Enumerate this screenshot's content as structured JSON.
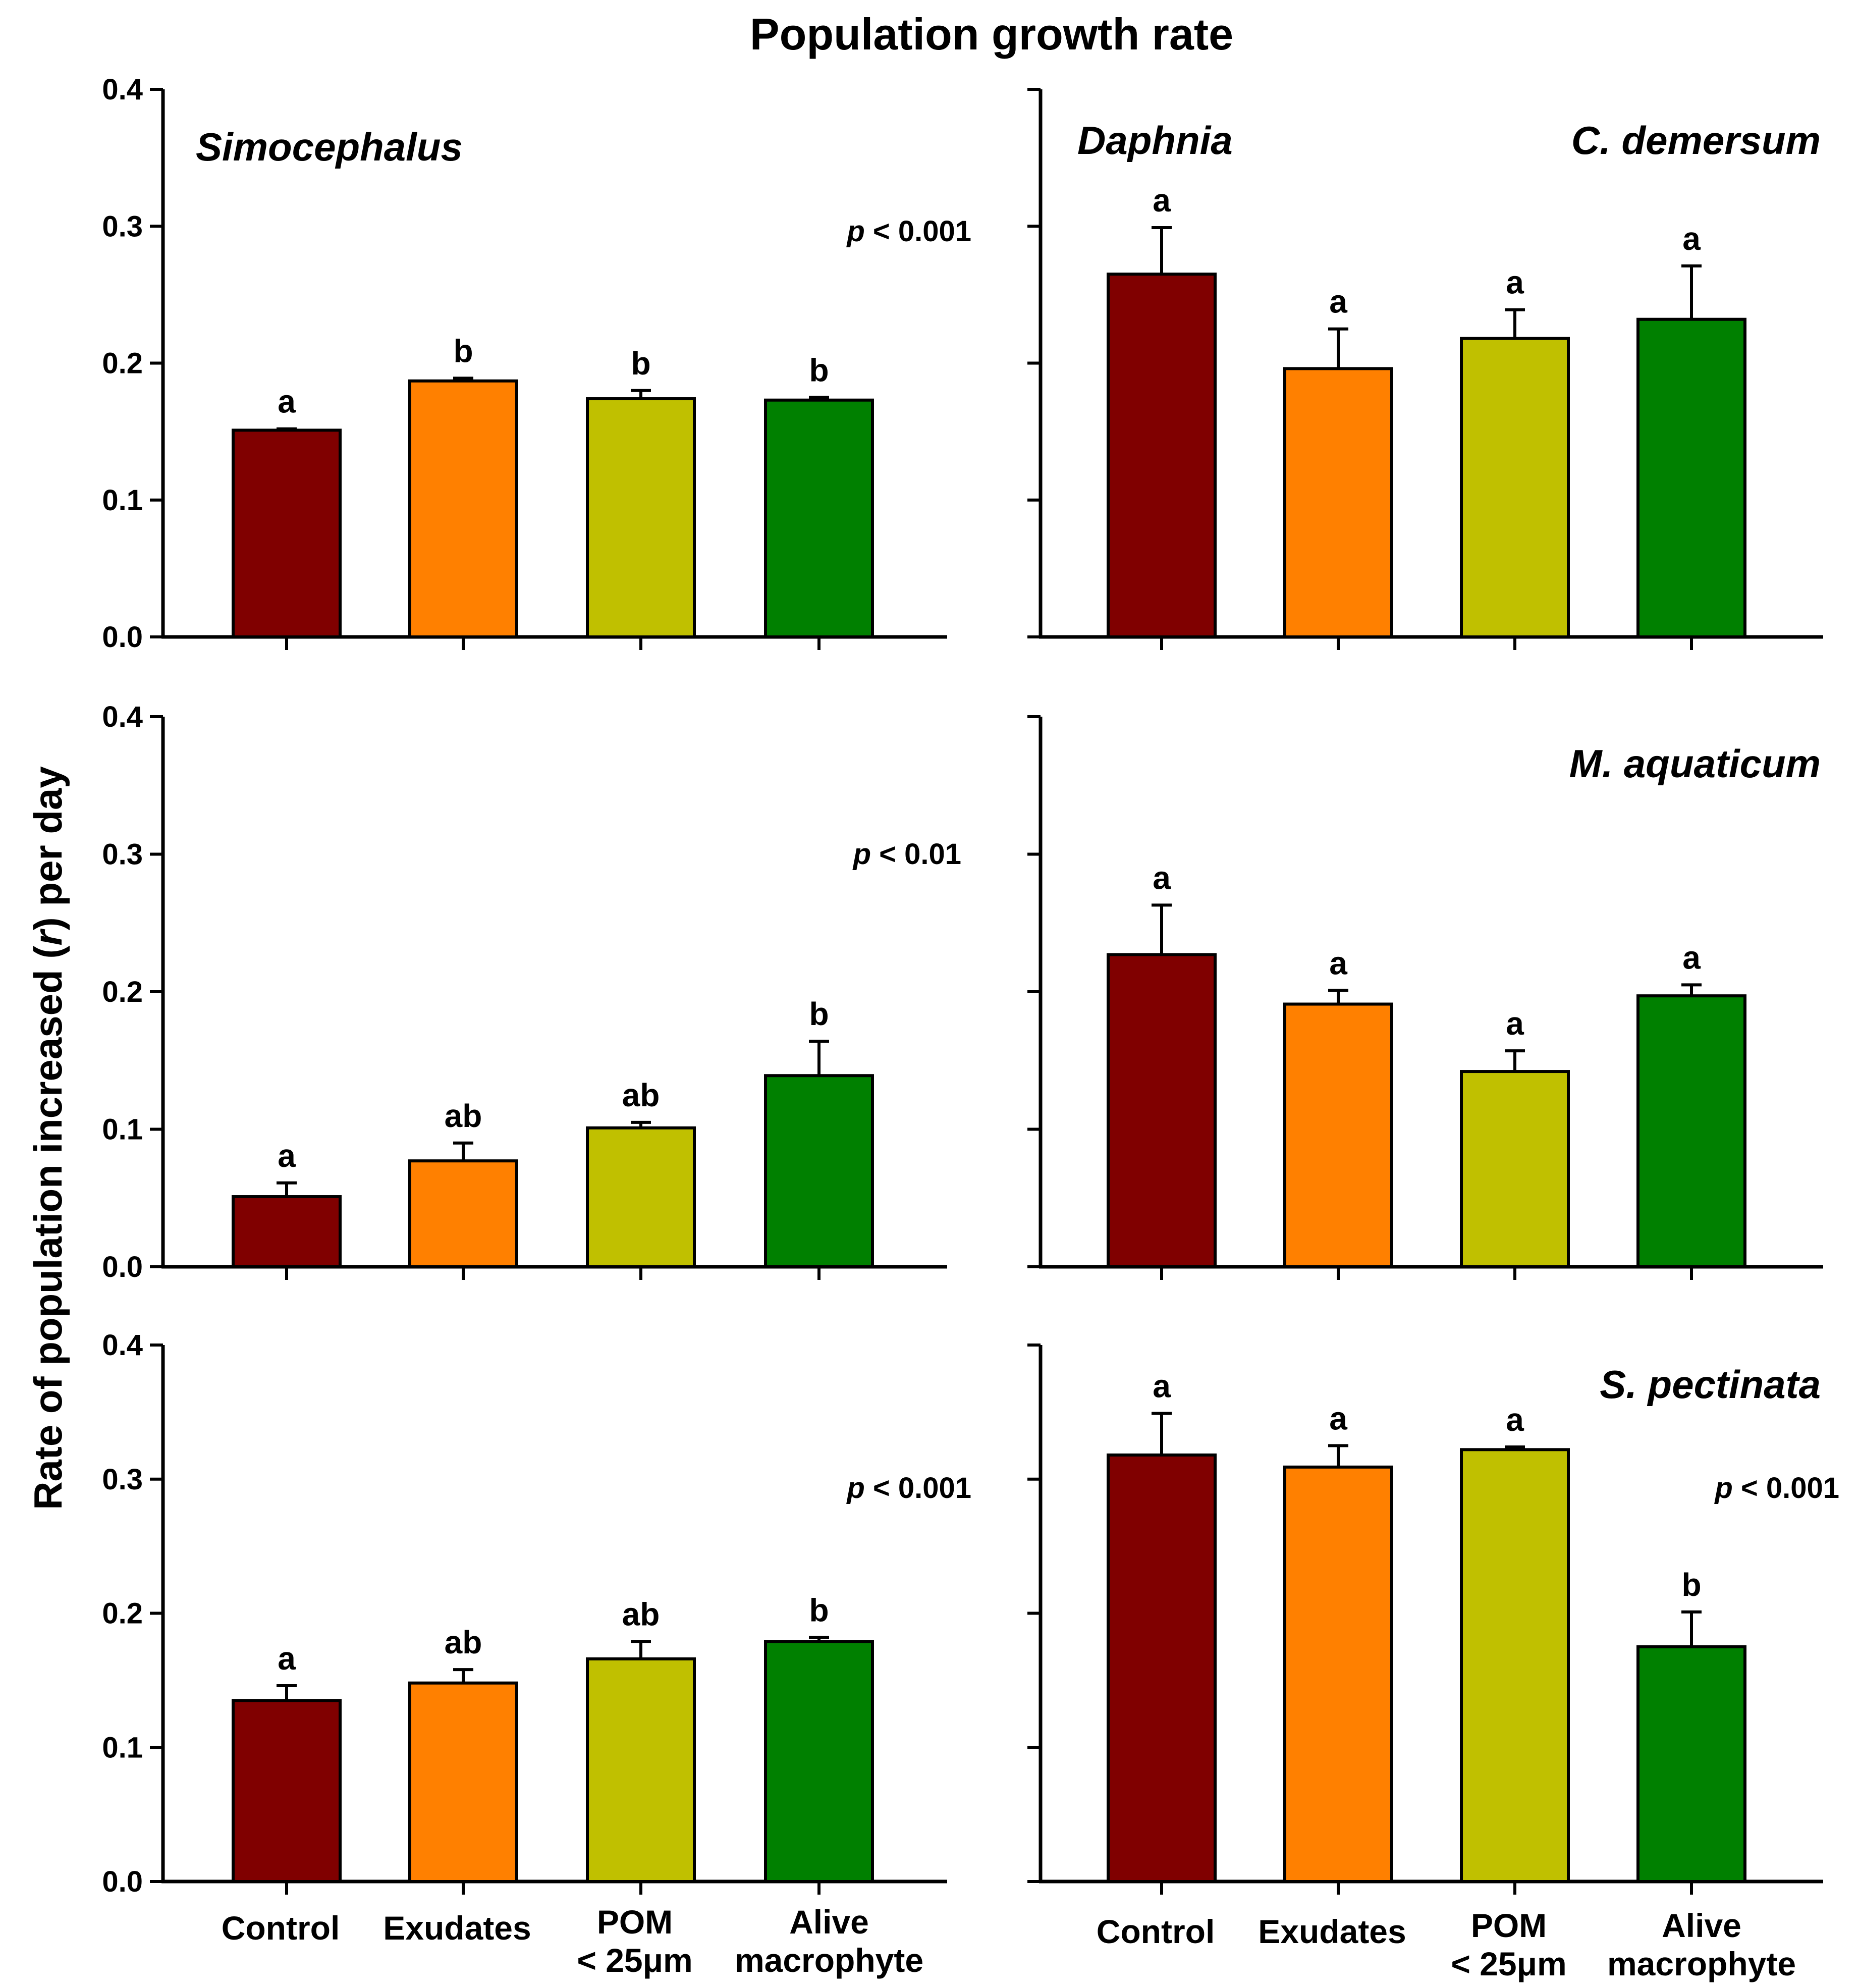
{
  "title": "Population growth rate",
  "ylabel": {
    "prefix": "Rate of population increased (",
    "italic": "r",
    "suffix": ") per day"
  },
  "colors": {
    "control": "#800000",
    "exudates": "#ff8000",
    "pom": "#c0c000",
    "alive": "#008000",
    "axis": "#000000"
  },
  "chart_data": [
    {
      "panel": "Simocephalus - C. demersum",
      "type": "bar",
      "column": "left",
      "row": 0,
      "species_label": "Simocephalus",
      "pvalue": {
        "p": "p",
        "rest": " < 0.001"
      },
      "categories": [
        "Control",
        "Exudates",
        "POM < 25μm",
        "Alive macrophyte"
      ],
      "values": [
        0.151,
        0.187,
        0.174,
        0.173
      ],
      "errors": [
        0.001,
        0.002,
        0.006,
        0.002
      ],
      "letters": [
        "a",
        "b",
        "b",
        "b"
      ],
      "ylim": [
        0,
        0.4
      ],
      "yticks": [
        "0.0",
        "0.1",
        "0.2",
        "0.3",
        "0.4"
      ]
    },
    {
      "panel": "Simocephalus - M. aquaticum",
      "type": "bar",
      "column": "left",
      "row": 1,
      "pvalue": {
        "p": "p",
        "rest": " < 0.01"
      },
      "categories": [
        "Control",
        "Exudates",
        "POM < 25μm",
        "Alive macrophyte"
      ],
      "values": [
        0.051,
        0.077,
        0.101,
        0.139
      ],
      "errors": [
        0.01,
        0.013,
        0.004,
        0.025
      ],
      "letters": [
        "a",
        "ab",
        "ab",
        "b"
      ],
      "ylim": [
        0,
        0.4
      ],
      "yticks": [
        "0.0",
        "0.1",
        "0.2",
        "0.3",
        "0.4"
      ]
    },
    {
      "panel": "Simocephalus - S. pectinata",
      "type": "bar",
      "column": "left",
      "row": 2,
      "pvalue": {
        "p": "p",
        "rest": " < 0.001"
      },
      "categories": [
        "Control",
        "Exudates",
        "POM < 25μm",
        "Alive macrophyte"
      ],
      "values": [
        0.135,
        0.148,
        0.166,
        0.179
      ],
      "errors": [
        0.011,
        0.01,
        0.013,
        0.003
      ],
      "letters": [
        "a",
        "ab",
        "ab",
        "b"
      ],
      "ylim": [
        0,
        0.4
      ],
      "yticks": [
        "0.0",
        "0.1",
        "0.2",
        "0.3",
        "0.4"
      ]
    },
    {
      "panel": "Daphnia - C. demersum",
      "type": "bar",
      "column": "right",
      "row": 0,
      "species_label": "Daphnia",
      "macrophyte_label": "C. demersum",
      "categories": [
        "Control",
        "Exudates",
        "POM < 25μm",
        "Alive macrophyte"
      ],
      "values": [
        0.265,
        0.196,
        0.218,
        0.232
      ],
      "errors": [
        0.034,
        0.029,
        0.021,
        0.039
      ],
      "letters": [
        "a",
        "a",
        "a",
        "a"
      ],
      "ylim": [
        0,
        0.4
      ]
    },
    {
      "panel": "Daphnia - M. aquaticum",
      "type": "bar",
      "column": "right",
      "row": 1,
      "macrophyte_label": "M. aquaticum",
      "categories": [
        "Control",
        "Exudates",
        "POM < 25μm",
        "Alive macrophyte"
      ],
      "values": [
        0.227,
        0.191,
        0.142,
        0.197
      ],
      "errors": [
        0.036,
        0.01,
        0.015,
        0.008
      ],
      "letters": [
        "a",
        "a",
        "a",
        "a"
      ],
      "ylim": [
        0,
        0.4
      ]
    },
    {
      "panel": "Daphnia - S. pectinata",
      "type": "bar",
      "column": "right",
      "row": 2,
      "macrophyte_label": "S. pectinata",
      "pvalue": {
        "p": "p",
        "rest": " < 0.001"
      },
      "categories": [
        "Control",
        "Exudates",
        "POM < 25μm",
        "Alive macrophyte"
      ],
      "values": [
        0.318,
        0.309,
        0.322,
        0.175
      ],
      "errors": [
        0.031,
        0.016,
        0.002,
        0.026
      ],
      "letters": [
        "a",
        "a",
        "a",
        "b"
      ],
      "ylim": [
        0,
        0.4
      ]
    }
  ],
  "xlabels": {
    "left": [
      [
        "Control"
      ],
      [
        "Exudates"
      ],
      [
        "POM",
        "< 25μm"
      ],
      [
        "Alive",
        "macrophyte"
      ]
    ],
    "right": [
      [
        "Control"
      ],
      [
        "Exudates"
      ],
      [
        "POM",
        "< 25μm"
      ],
      [
        "Alive",
        "macrophyte"
      ]
    ]
  }
}
